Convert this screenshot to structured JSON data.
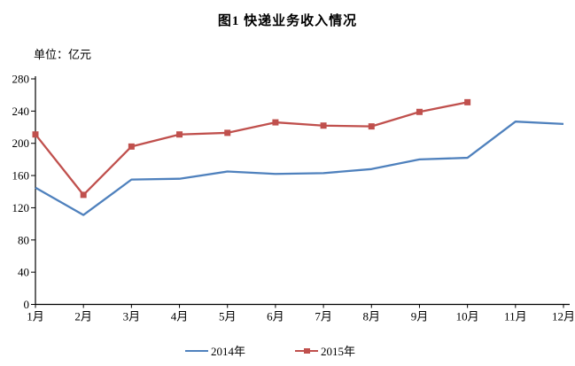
{
  "title": "图1  快递业务收入情况",
  "unit_label": "单位：亿元",
  "chart_data": {
    "type": "line",
    "categories": [
      "1月",
      "2月",
      "3月",
      "4月",
      "5月",
      "6月",
      "7月",
      "8月",
      "9月",
      "10月",
      "11月",
      "12月"
    ],
    "series": [
      {
        "name": "2014年",
        "color": "#4F81BD",
        "marker": "none",
        "values": [
          145,
          111,
          155,
          156,
          165,
          162,
          163,
          168,
          180,
          182,
          227,
          224
        ]
      },
      {
        "name": "2015年",
        "color": "#C0504D",
        "marker": "square",
        "values": [
          211,
          136,
          196,
          211,
          213,
          226,
          222,
          221,
          239,
          251
        ]
      }
    ],
    "title": "图1  快递业务收入情况",
    "xlabel": "",
    "ylabel": "单位：亿元",
    "ylim": [
      0,
      280
    ],
    "ytick_step": 40,
    "grid": false,
    "legend_position": "bottom"
  }
}
